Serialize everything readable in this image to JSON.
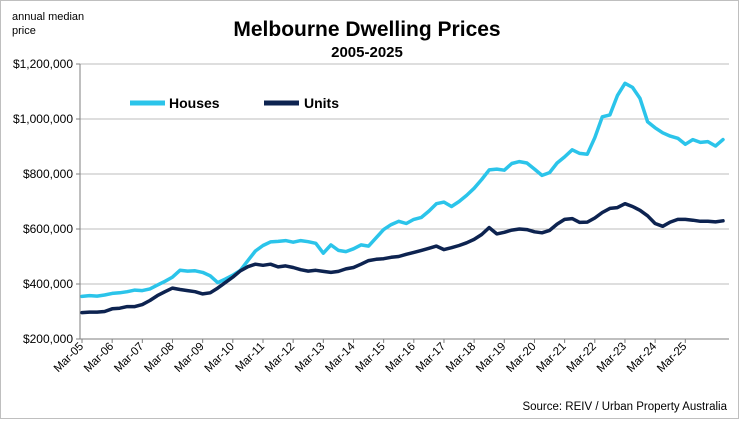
{
  "chart_data": {
    "type": "line",
    "title": "Melbourne Dwelling Prices",
    "subtitle": "2005-2025",
    "ylabel": "annual median price",
    "ylabel_lines": [
      "annual median",
      "price"
    ],
    "source": "Source: REIV / Urban Property Australia",
    "ylim": [
      200000,
      1200000
    ],
    "y_ticks": [
      200000,
      400000,
      600000,
      800000,
      1000000,
      1200000
    ],
    "y_tick_labels": [
      "$200,000",
      "$400,000",
      "$600,000",
      "$800,000",
      "$1,000,000",
      "$1,200,000"
    ],
    "x_tick_labels": [
      "Mar-05",
      "Mar-06",
      "Mar-07",
      "Mar-08",
      "Mar-09",
      "Mar-10",
      "Mar-11",
      "Mar-12",
      "Mar-13",
      "Mar-14",
      "Mar-15",
      "Mar-16",
      "Mar-17",
      "Mar-18",
      "Mar-19",
      "Mar-20",
      "Mar-21",
      "Mar-22",
      "Mar-23",
      "Mar-24",
      "Mar-25"
    ],
    "x_start": "Mar-05",
    "x_step": "quarter",
    "grid": true,
    "legend_position": "top-left",
    "series": [
      {
        "name": "Houses",
        "color": "#2bc4ea",
        "values": [
          355000,
          358000,
          356000,
          360000,
          366000,
          368000,
          372000,
          378000,
          376000,
          382000,
          396000,
          410000,
          425000,
          450000,
          447000,
          448000,
          442000,
          430000,
          405000,
          418000,
          432000,
          450000,
          485000,
          520000,
          540000,
          553000,
          555000,
          558000,
          552000,
          558000,
          554000,
          548000,
          512000,
          542000,
          522000,
          518000,
          528000,
          542000,
          538000,
          568000,
          598000,
          616000,
          628000,
          620000,
          635000,
          642000,
          665000,
          692000,
          698000,
          682000,
          700000,
          722000,
          748000,
          780000,
          815000,
          818000,
          814000,
          838000,
          845000,
          840000,
          818000,
          795000,
          805000,
          840000,
          862000,
          888000,
          875000,
          872000,
          932000,
          1008000,
          1015000,
          1085000,
          1130000,
          1115000,
          1075000,
          990000,
          968000,
          950000,
          938000,
          930000,
          908000,
          925000,
          915000,
          918000,
          902000,
          925000
        ]
      },
      {
        "name": "Units",
        "color": "#0d2350",
        "values": [
          296000,
          298000,
          298000,
          300000,
          310000,
          312000,
          318000,
          318000,
          325000,
          340000,
          358000,
          372000,
          385000,
          380000,
          376000,
          372000,
          364000,
          368000,
          385000,
          405000,
          425000,
          448000,
          463000,
          472000,
          468000,
          472000,
          462000,
          466000,
          460000,
          452000,
          447000,
          450000,
          446000,
          442000,
          446000,
          455000,
          460000,
          472000,
          485000,
          490000,
          492000,
          497000,
          500000,
          508000,
          515000,
          522000,
          530000,
          538000,
          525000,
          532000,
          540000,
          550000,
          562000,
          580000,
          605000,
          582000,
          588000,
          596000,
          600000,
          598000,
          590000,
          586000,
          595000,
          618000,
          635000,
          638000,
          624000,
          625000,
          640000,
          660000,
          675000,
          678000,
          692000,
          682000,
          668000,
          648000,
          620000,
          610000,
          625000,
          635000,
          635000,
          632000,
          628000,
          628000,
          626000,
          630000
        ]
      }
    ]
  }
}
